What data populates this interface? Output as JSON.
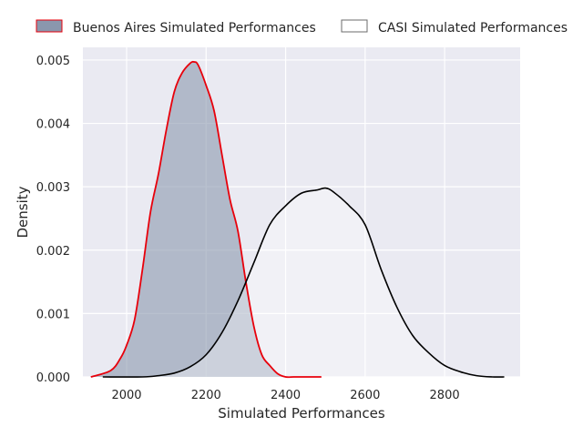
{
  "chart_data": {
    "type": "area",
    "xlabel": "Simulated Performances",
    "ylabel": "Density",
    "xlim": [
      1890,
      2990
    ],
    "ylim": [
      0,
      0.0052
    ],
    "x_ticks": [
      2000,
      2200,
      2400,
      2600,
      2800
    ],
    "x_tick_labels": [
      "2000",
      "2200",
      "2400",
      "2600",
      "2800"
    ],
    "y_ticks": [
      0.0,
      0.001,
      0.002,
      0.003,
      0.004,
      0.005
    ],
    "y_tick_labels": [
      "0.000",
      "0.001",
      "0.002",
      "0.003",
      "0.004",
      "0.005"
    ],
    "grid": true,
    "legend_placement": "top, above plot",
    "colors": {
      "background": "#eaeaf2",
      "grid": "#ffffff",
      "buenos_fill": "#8a97ad",
      "buenos_line": "#e8000b",
      "casi_line": "#000000",
      "text": "#262626"
    },
    "series": [
      {
        "name": "Buenos Aires Simulated Performances",
        "style": "filled",
        "x": [
          1910,
          1960,
          1985,
          2000,
          2020,
          2040,
          2060,
          2080,
          2100,
          2120,
          2140,
          2160,
          2170,
          2180,
          2200,
          2220,
          2240,
          2260,
          2280,
          2300,
          2320,
          2340,
          2360,
          2380,
          2400,
          2420,
          2440,
          2460,
          2480,
          2490
        ],
        "y": [
          0.0,
          0.0001,
          0.0003,
          0.0005,
          0.0009,
          0.0017,
          0.0026,
          0.0032,
          0.0039,
          0.0045,
          0.0048,
          0.00495,
          0.00497,
          0.00492,
          0.0046,
          0.0042,
          0.0035,
          0.0028,
          0.0023,
          0.0015,
          0.0008,
          0.00035,
          0.00018,
          5e-05,
          0.0,
          0.0,
          0.0,
          0.0,
          0.0,
          0.0
        ]
      },
      {
        "name": "CASI Simulated Performances",
        "style": "outline",
        "x": [
          1940,
          2040,
          2080,
          2120,
          2160,
          2200,
          2240,
          2280,
          2320,
          2360,
          2400,
          2440,
          2480,
          2500,
          2520,
          2560,
          2600,
          2640,
          2680,
          2720,
          2760,
          2800,
          2840,
          2880,
          2920,
          2950
        ],
        "y": [
          0.0,
          0.0,
          2e-05,
          6e-05,
          0.00016,
          0.00035,
          0.0007,
          0.0012,
          0.0018,
          0.0024,
          0.0027,
          0.0029,
          0.00295,
          0.00298,
          0.00292,
          0.0027,
          0.0024,
          0.0017,
          0.0011,
          0.00065,
          0.00038,
          0.00018,
          8e-05,
          2e-05,
          0.0,
          0.0
        ]
      }
    ]
  }
}
